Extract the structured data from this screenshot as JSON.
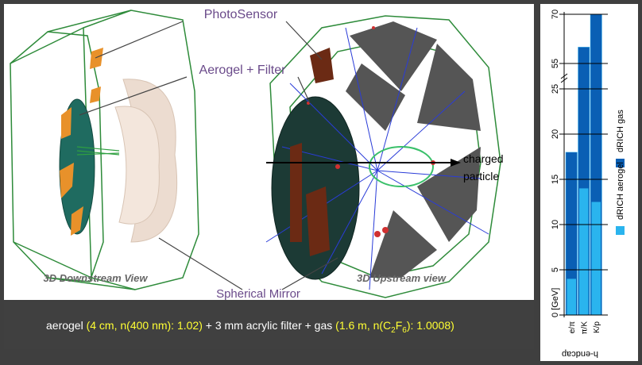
{
  "labels": {
    "photosensor": "PhotoSensor",
    "aerogel_filter": "Aerogel + Filter",
    "charged_particle": [
      "charged",
      "particle"
    ],
    "downstream": "3D Downstream View",
    "mirror": "Spherical Mirror",
    "upstream": "3D Upstream view"
  },
  "caption": [
    {
      "text": "aerogel ",
      "color": "#ffffff"
    },
    {
      "text": "(4 cm, n(400 nm): 1.02)",
      "color": "#ffff33"
    },
    {
      "text": " + 3 mm acrylic filter + gas ",
      "color": "#ffffff"
    },
    {
      "text": "(1.6 m, n(C",
      "color": "#ffff33"
    },
    {
      "text": "2",
      "color": "#ffff33",
      "sub": true
    },
    {
      "text": "F",
      "color": "#ffff33"
    },
    {
      "text": "6",
      "color": "#ffff33",
      "sub": true
    },
    {
      "text": "): 1.0008)",
      "color": "#ffff33"
    }
  ],
  "chart_data": {
    "type": "bar",
    "categories": [
      "e/π",
      "π/K",
      "K/p"
    ],
    "series": [
      {
        "name": "dRICH gas",
        "color": "#0a5fb4",
        "values": [
          18,
          60,
          70
        ]
      },
      {
        "name": "dRICH aerogel",
        "color": "#2ab4ee",
        "values": [
          4,
          14,
          12.5
        ]
      }
    ],
    "ylim": [
      0,
      70
    ],
    "yticks": [
      {
        "value": 0,
        "label": "0 [GeV]"
      },
      5,
      10,
      15,
      20,
      25,
      55,
      70
    ],
    "axis_break": [
      25,
      55
    ],
    "xlabel": "h-endcap",
    "grid": true,
    "orientation": "rotated"
  }
}
